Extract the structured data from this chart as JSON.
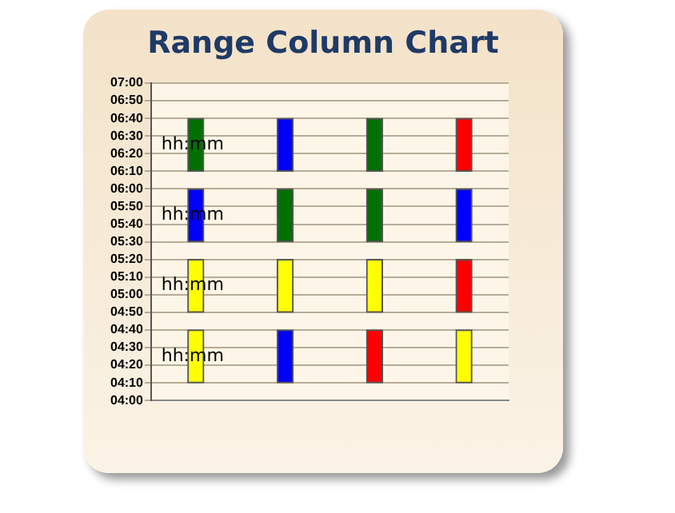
{
  "chart_data": {
    "type": "bar",
    "title": "Range Column Chart",
    "categories": [
      null,
      null,
      null,
      null
    ],
    "series": [
      {
        "colors": [
          "#ffff00",
          "#0000ff",
          "#ff0000",
          "#ffff00"
        ],
        "base": [
          4.1667,
          4.1667,
          4.1667,
          4.1667
        ],
        "values": [
          0.5,
          0.5,
          0.5,
          0.5
        ]
      },
      {
        "colors": [
          "#ffff00",
          "#ffff00",
          "#ffff00",
          "#ff0000"
        ],
        "base": [
          4.8333,
          4.8333,
          4.8333,
          4.8333
        ],
        "values": [
          0.5,
          0.5,
          0.5,
          0.5
        ]
      },
      {
        "colors": [
          "#0000ff",
          "#007000",
          "#007000",
          "#0000ff"
        ],
        "base": [
          5.5,
          5.5,
          5.5,
          5.5
        ],
        "values": [
          0.5,
          0.5,
          0.5,
          0.5
        ]
      },
      {
        "colors": [
          "#007000",
          "#0000ff",
          "#007000",
          "#ff0000"
        ],
        "base": [
          6.1667,
          6.1667,
          6.1667,
          6.1667
        ],
        "values": [
          0.5,
          0.5,
          0.5,
          0.5
        ]
      }
    ],
    "ylim": [
      4,
      7
    ],
    "yticks": [
      {
        "value": 4,
        "label": "04:00"
      },
      {
        "value": 4.1667,
        "label": "04:10"
      },
      {
        "value": 4.3333,
        "label": "04:20"
      },
      {
        "value": 4.5,
        "label": "04:30"
      },
      {
        "value": 4.6667,
        "label": "04:40"
      },
      {
        "value": 4.8333,
        "label": "04:50"
      },
      {
        "value": 5,
        "label": "05:00"
      },
      {
        "value": 5.1667,
        "label": "05:10"
      },
      {
        "value": 5.3333,
        "label": "05:20"
      },
      {
        "value": 5.5,
        "label": "05:30"
      },
      {
        "value": 5.6667,
        "label": "05:40"
      },
      {
        "value": 5.8333,
        "label": "05:50"
      },
      {
        "value": 6,
        "label": "06:00"
      },
      {
        "value": 6.1667,
        "label": "06:10"
      },
      {
        "value": 6.3333,
        "label": "06:20"
      },
      {
        "value": 6.5,
        "label": "06:30"
      },
      {
        "value": 6.6667,
        "label": "06:40"
      },
      {
        "value": 6.8333,
        "label": "06:50"
      },
      {
        "value": 7,
        "label": "07:00"
      }
    ],
    "grid": "y",
    "annotations": [
      {
        "text": "hh:mm",
        "y": 4.4167
      },
      {
        "text": "hh:mm",
        "y": 5.0833
      },
      {
        "text": "hh:mm",
        "y": 5.75
      },
      {
        "text": "hh:mm",
        "y": 6.4167
      }
    ]
  }
}
